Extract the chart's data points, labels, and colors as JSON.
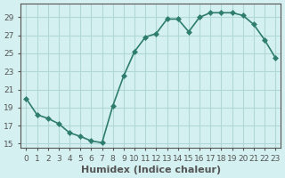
{
  "x": [
    0,
    1,
    2,
    3,
    4,
    5,
    6,
    7,
    8,
    9,
    10,
    11,
    12,
    13,
    14,
    15,
    16,
    17,
    18,
    19,
    20,
    21,
    22,
    23
  ],
  "y": [
    20.0,
    18.2,
    17.8,
    17.2,
    16.2,
    15.8,
    15.3,
    15.1,
    19.2,
    22.5,
    25.2,
    26.8,
    27.2,
    28.8,
    28.8,
    27.4,
    29.0,
    29.5,
    29.5,
    29.5,
    29.2,
    28.2,
    26.5,
    24.5
  ],
  "line_color": "#2e7d6e",
  "marker_color": "#2e7d6e",
  "bg_color": "#d4f0f0",
  "grid_color": "#b0d8d8",
  "axis_color": "#555555",
  "xlabel": "Humidex (Indice chaleur)",
  "xlim": [
    -0.5,
    23.5
  ],
  "ylim": [
    14.5,
    30.5
  ],
  "yticks": [
    15,
    17,
    19,
    21,
    23,
    25,
    27,
    29
  ],
  "xtick_labels": [
    "0",
    "1",
    "2",
    "3",
    "4",
    "5",
    "6",
    "7",
    "8",
    "9",
    "10",
    "11",
    "12",
    "13",
    "14",
    "15",
    "16",
    "17",
    "18",
    "19",
    "20",
    "21",
    "22",
    "23"
  ],
  "xlabel_fontsize": 8,
  "tick_fontsize": 6.5,
  "linewidth": 1.2,
  "markersize": 3
}
